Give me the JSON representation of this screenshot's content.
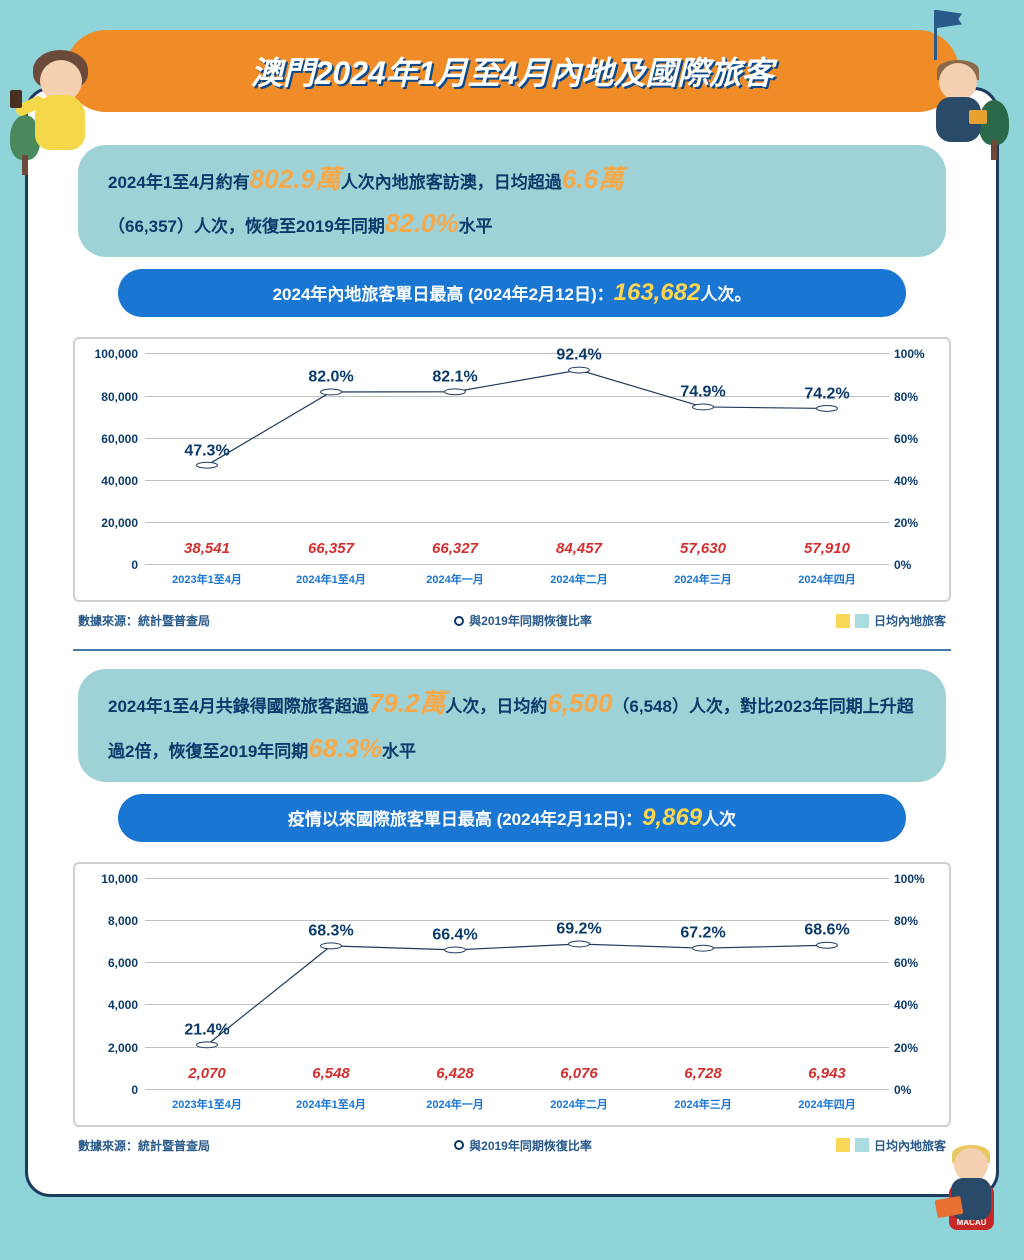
{
  "header": {
    "title": "澳門2024年1月至4月內地及國際旅客"
  },
  "section1": {
    "info_parts": {
      "t1": "2024年1至4月約有",
      "h1": "802.9萬",
      "t2": "人次內地旅客訪澳，日均超過",
      "h2": "6.6萬",
      "t3": "（66,357）人次，恢復至2019年同期",
      "h3": "82.0%",
      "t4": "水平"
    },
    "peak": {
      "label": "2024年內地旅客單日最高 (2024年2月12日)：",
      "value": "163,682",
      "suffix": "人次。"
    }
  },
  "chart1": {
    "y_left_max": 100000,
    "y_left_ticks": [
      "0",
      "20,000",
      "40,000",
      "60,000",
      "80,000",
      "100,000"
    ],
    "y_right_ticks": [
      "0%",
      "20%",
      "40%",
      "60%",
      "80%",
      "100%"
    ],
    "categories": [
      "2023年1至4月",
      "2024年1至4月",
      "2024年一月",
      "2024年二月",
      "2024年三月",
      "2024年四月"
    ],
    "bar_values": [
      38541,
      66357,
      66327,
      84457,
      57630,
      57910
    ],
    "bar_labels": [
      "38,541",
      "66,357",
      "66,327",
      "84,457",
      "57,630",
      "57,910"
    ],
    "bar_colors": [
      "linear-gradient(90deg,#f8d858,#a8dce0)",
      "linear-gradient(90deg,#f8d858,#a8dce0)",
      "#a8dce0",
      "#a8dce0",
      "#a8dce0",
      "#a8dce0"
    ],
    "line_pct": [
      47.3,
      82.0,
      82.1,
      92.4,
      74.9,
      74.2
    ],
    "line_labels": [
      "47.3%",
      "82.0%",
      "82.1%",
      "92.4%",
      "74.9%",
      "74.2%"
    ],
    "line_color": "#1e3a5f",
    "grid_color": "#c0c0c0",
    "value_color": "#d32f2f"
  },
  "legend": {
    "source": "數據來源：統計暨普查局",
    "line_label": "與2019年同期恢復比率",
    "bar_label": "日均內地旅客",
    "swatch1": "#f8d858",
    "swatch2": "#a8dce0"
  },
  "section2": {
    "info_parts": {
      "t1": "2024年1至4月共錄得國際旅客超過",
      "h1": "79.2萬",
      "t2": "人次，日均約",
      "h2": "6,500",
      "t3": "（6,548）人次，對比2023年同期上升超過2倍，恢復至2019年同期",
      "h3": "68.3%",
      "t4": "水平"
    },
    "peak": {
      "label": "疫情以來國際旅客單日最高 (2024年2月12日)：",
      "value": "9,869",
      "suffix": "人次"
    }
  },
  "chart2": {
    "y_left_max": 10000,
    "y_left_ticks": [
      "0",
      "2,000",
      "4,000",
      "6,000",
      "8,000",
      "10,000"
    ],
    "y_right_ticks": [
      "0%",
      "20%",
      "40%",
      "60%",
      "80%",
      "100%"
    ],
    "categories": [
      "2023年1至4月",
      "2024年1至4月",
      "2024年一月",
      "2024年二月",
      "2024年三月",
      "2024年四月"
    ],
    "bar_values": [
      2070,
      6548,
      6428,
      6076,
      6728,
      6943
    ],
    "bar_labels": [
      "2,070",
      "6,548",
      "6,428",
      "6,076",
      "6,728",
      "6,943"
    ],
    "bar_colors": [
      "linear-gradient(90deg,#f8d858,#a8dce0)",
      "linear-gradient(90deg,#f8d858,#a8dce0)",
      "#a8dce0",
      "#a8dce0",
      "#a8dce0",
      "#a8dce0"
    ],
    "line_pct": [
      21.4,
      68.3,
      66.4,
      69.2,
      67.2,
      68.6
    ],
    "line_labels": [
      "21.4%",
      "68.3%",
      "66.4%",
      "69.2%",
      "67.2%",
      "68.6%"
    ],
    "line_color": "#1e3a5f"
  },
  "logo_text": "MACAU"
}
